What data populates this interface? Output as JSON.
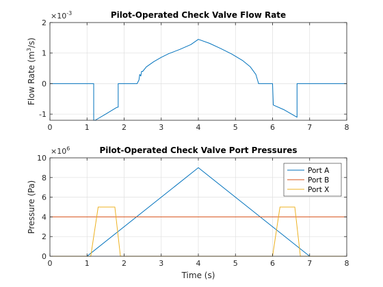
{
  "chart_data": [
    {
      "type": "line",
      "title": "Pilot-Operated Check Valve Flow Rate",
      "xlabel": "",
      "ylabel_main": "Flow Rate (m",
      "ylabel_sup": "3",
      "ylabel_tail": "/s)",
      "exponent_base": "×10",
      "exponent_power": "-3",
      "xlim": [
        0,
        8
      ],
      "ylim": [
        -1.2,
        2
      ],
      "xticks": [
        0,
        1,
        2,
        3,
        4,
        5,
        6,
        7,
        8
      ],
      "yticks": [
        -1,
        0,
        1,
        2
      ],
      "grid": true,
      "series": [
        {
          "color": "#0072BD",
          "x": [
            0,
            1.18,
            1.18,
            1.22,
            1.5,
            1.8,
            1.84,
            1.84,
            2.35,
            2.4,
            2.42,
            2.45,
            2.47,
            2.5,
            2.6,
            2.8,
            3.0,
            3.2,
            3.5,
            3.8,
            4.0,
            4.3,
            4.6,
            4.9,
            5.2,
            5.4,
            5.55,
            5.62,
            5.62,
            6.0,
            6.02,
            6.02,
            6.3,
            6.66,
            6.66,
            8
          ],
          "y": [
            0,
            0,
            -1.2,
            -1.2,
            -1.0,
            -0.78,
            -0.77,
            0,
            0,
            0.12,
            0.3,
            0.25,
            0.4,
            0.4,
            0.55,
            0.72,
            0.86,
            0.98,
            1.12,
            1.28,
            1.45,
            1.32,
            1.15,
            0.97,
            0.75,
            0.55,
            0.3,
            0.02,
            0,
            0,
            -0.7,
            -0.7,
            -0.85,
            -1.1,
            0,
            0
          ]
        }
      ]
    },
    {
      "type": "line",
      "title": "Pilot-Operated Check Valve Port Pressures",
      "xlabel": "Time (s)",
      "ylabel": "Pressure (Pa)",
      "exponent_base": "×10",
      "exponent_power": "6",
      "xlim": [
        0,
        8
      ],
      "ylim": [
        0,
        10
      ],
      "xticks": [
        0,
        1,
        2,
        3,
        4,
        5,
        6,
        7,
        8
      ],
      "yticks": [
        0,
        2,
        4,
        6,
        8,
        10
      ],
      "grid": true,
      "legend": "top-right",
      "series": [
        {
          "name": "Port A",
          "color": "#0072BD",
          "x": [
            0,
            1.0,
            4.0,
            7.0,
            8.0
          ],
          "y": [
            0,
            0,
            9.0,
            0,
            0
          ]
        },
        {
          "name": "Port B",
          "color": "#D95319",
          "x": [
            0,
            8
          ],
          "y": [
            4.0,
            4.0
          ]
        },
        {
          "name": "Port X",
          "color": "#EDB120",
          "x": [
            0,
            1.1,
            1.3,
            1.75,
            1.9,
            6.0,
            6.2,
            6.6,
            6.75,
            8
          ],
          "y": [
            0,
            0,
            5.0,
            5.0,
            0,
            0,
            5.0,
            5.0,
            0,
            0
          ]
        }
      ]
    }
  ]
}
